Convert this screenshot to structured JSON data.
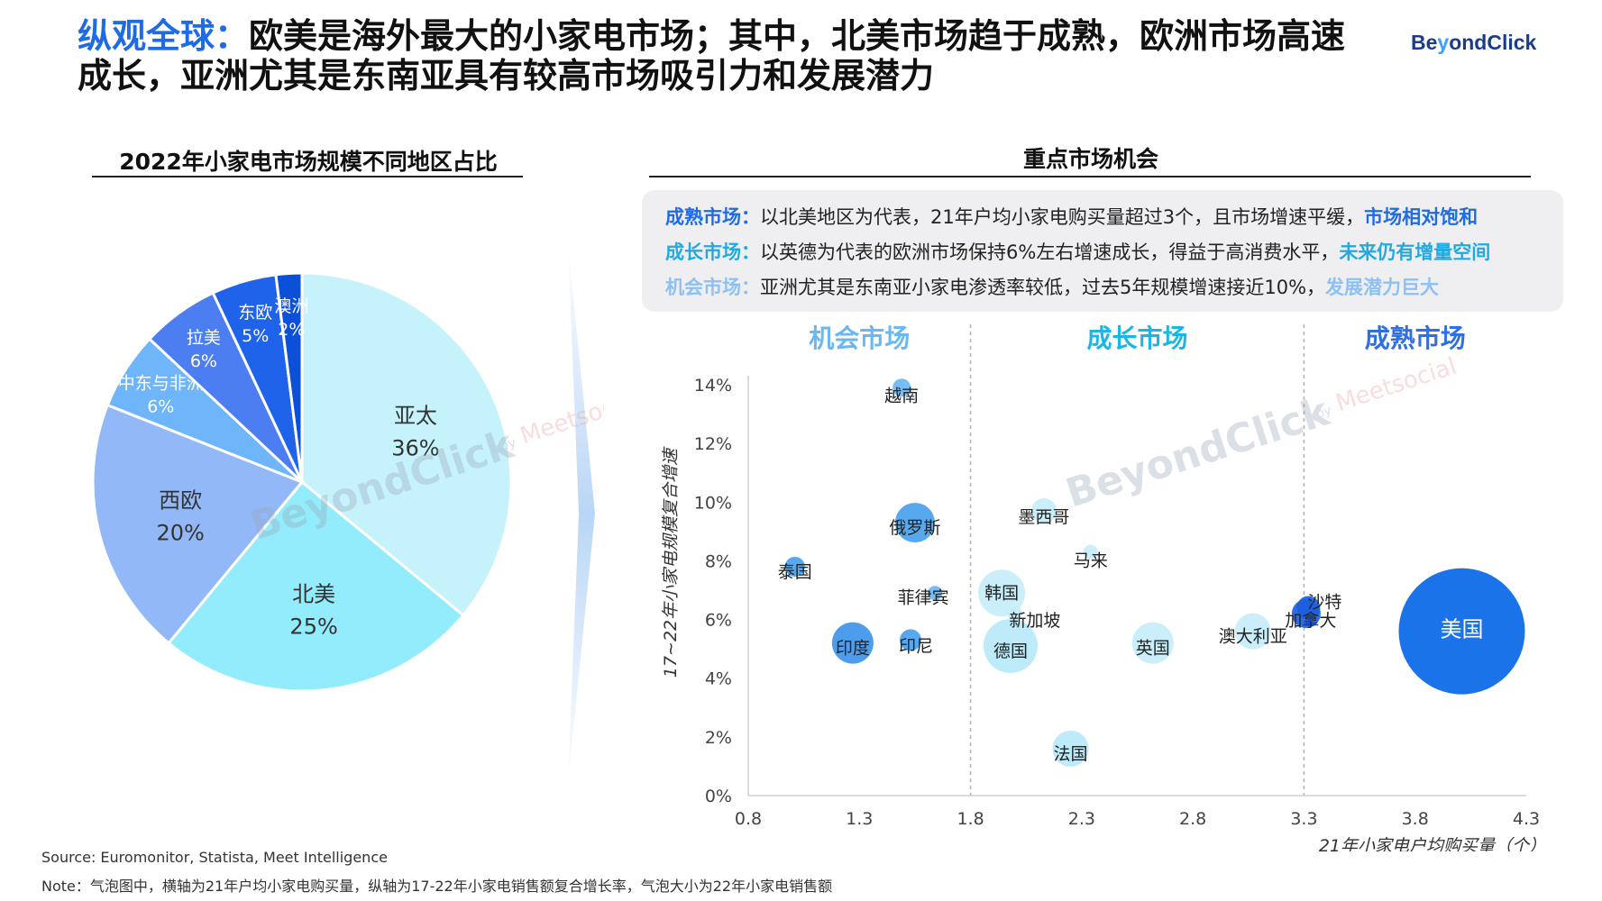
{
  "header": {
    "lead": "纵观全球：",
    "text": "欧美是海外最大的小家电市场；其中，北美市场趋于成熟，欧洲市场高速成长，亚洲尤其是东南亚具有较高市场吸引力和发展潜力",
    "brand_prefix": "Be",
    "brand_y": "y",
    "brand_suffix": "ondClick"
  },
  "watermark": {
    "name": "BeyondClick",
    "by": "by",
    "sub": "Meetsocial"
  },
  "left_title": "2022年小家电市场规模不同地区占比",
  "right_title": "重点市场机会",
  "callout": {
    "rows": [
      {
        "key": "成熟市场：",
        "text": "以北美地区为代表，21年户均小家电购买量超过3个，且市场增速平缓，",
        "highlight": "市场相对饱和",
        "color": "#1f6be6"
      },
      {
        "key": "成长市场：",
        "text": "以英德为代表的欧洲市场保持6%左右增速成长，得益于高消费水平，",
        "highlight": "未来仍有增量空间",
        "color": "#22a9e0"
      },
      {
        "key": "机会市场：",
        "text": "亚洲尤其是东南亚小家电渗透率较低，过去5年规模增速接近10%，",
        "highlight": "发展潜力巨大",
        "color": "#8ec0f3"
      }
    ]
  },
  "chart_data": [
    {
      "type": "pie",
      "title": "2022年小家电市场规模不同地区占比",
      "slices": [
        {
          "label": "亚太",
          "value": 36,
          "display": "36%",
          "color": "#c6f3fb"
        },
        {
          "label": "北美",
          "value": 25,
          "display": "25%",
          "color": "#92ecfb"
        },
        {
          "label": "西欧",
          "value": 20,
          "display": "20%",
          "color": "#93b8f8"
        },
        {
          "label": "中东与非洲",
          "value": 6,
          "display": "6%",
          "color": "#6eb6f9"
        },
        {
          "label": "拉美",
          "value": 6,
          "display": "6%",
          "color": "#4c7ef2"
        },
        {
          "label": "东欧",
          "value": 5,
          "display": "5%",
          "color": "#1f63ea"
        },
        {
          "label": "澳洲",
          "value": 2,
          "display": "2%",
          "color": "#0c4fd8"
        }
      ]
    },
    {
      "type": "scatter",
      "subtype": "bubble",
      "title": "重点市场机会",
      "xlabel": "21年小家电户均购买量（个）",
      "ylabel": "17~22年小家电规模复合增速",
      "xlim": [
        0.8,
        4.3
      ],
      "ylim": [
        0,
        14
      ],
      "xticks": [
        "0.8",
        "1.3",
        "1.8",
        "2.3",
        "2.8",
        "3.3",
        "3.8",
        "4.3"
      ],
      "yticks": [
        "0%",
        "2%",
        "4%",
        "6%",
        "8%",
        "10%",
        "12%",
        "14%"
      ],
      "regions": [
        {
          "label": "机会市场",
          "from": 0.8,
          "to": 1.8,
          "color": "#6ab7f2"
        },
        {
          "label": "成长市场",
          "from": 1.8,
          "to": 3.3,
          "color": "#1cb5e6"
        },
        {
          "label": "成熟市场",
          "from": 3.3,
          "to": 4.3,
          "color": "#2f6fe6"
        }
      ],
      "points": [
        {
          "label": "越南",
          "x": 1.49,
          "y": 13.9,
          "size": 10,
          "color": "#6ab7f2"
        },
        {
          "label": "俄罗斯",
          "x": 1.55,
          "y": 9.3,
          "size": 22,
          "color": "#4aa1ec"
        },
        {
          "label": "泰国",
          "x": 1.01,
          "y": 7.8,
          "size": 11,
          "color": "#4aa1ec"
        },
        {
          "label": "菲律宾",
          "x": 1.64,
          "y": 6.9,
          "size": 8,
          "color": "#6ab7f2"
        },
        {
          "label": "印度",
          "x": 1.27,
          "y": 5.2,
          "size": 23,
          "color": "#3e95ea"
        },
        {
          "label": "印尼",
          "x": 1.53,
          "y": 5.3,
          "size": 12,
          "color": "#4aa1ec"
        },
        {
          "label": "墨西哥",
          "x": 2.13,
          "y": 9.7,
          "size": 14,
          "color": "#c5eefa"
        },
        {
          "label": "马来",
          "x": 2.34,
          "y": 8.3,
          "size": 8,
          "color": "#c5eefa"
        },
        {
          "label": "韩国",
          "x": 1.94,
          "y": 6.9,
          "size": 26,
          "color": "#c5eefa"
        },
        {
          "label": "新加坡",
          "x": 2.0,
          "y": 6.2,
          "size": 8,
          "color": "#c5eefa"
        },
        {
          "label": "德国",
          "x": 1.98,
          "y": 5.1,
          "size": 30,
          "color": "#b7e9f8"
        },
        {
          "label": "英国",
          "x": 2.62,
          "y": 5.2,
          "size": 23,
          "color": "#c5eefa"
        },
        {
          "label": "澳大利亚",
          "x": 3.07,
          "y": 5.6,
          "size": 20,
          "color": "#c5eefa"
        },
        {
          "label": "法国",
          "x": 2.25,
          "y": 1.6,
          "size": 20,
          "color": "#b7e9f8"
        },
        {
          "label": "沙特",
          "x": 3.32,
          "y": 6.4,
          "size": 13,
          "color": "#1b60de"
        },
        {
          "label": "加拿大",
          "x": 3.31,
          "y": 6.2,
          "size": 16,
          "color": "#1b60de"
        },
        {
          "label": "美国",
          "x": 4.01,
          "y": 5.6,
          "size": 70,
          "color": "#0867e8"
        }
      ]
    }
  ],
  "footer": {
    "source": "Source: Euromonitor, Statista, Meet Intelligence",
    "note": "Note：气泡图中，横轴为21年户均小家电购买量，纵轴为17-22年小家电销售额复合增长率，气泡大小为22年小家电销售额"
  }
}
